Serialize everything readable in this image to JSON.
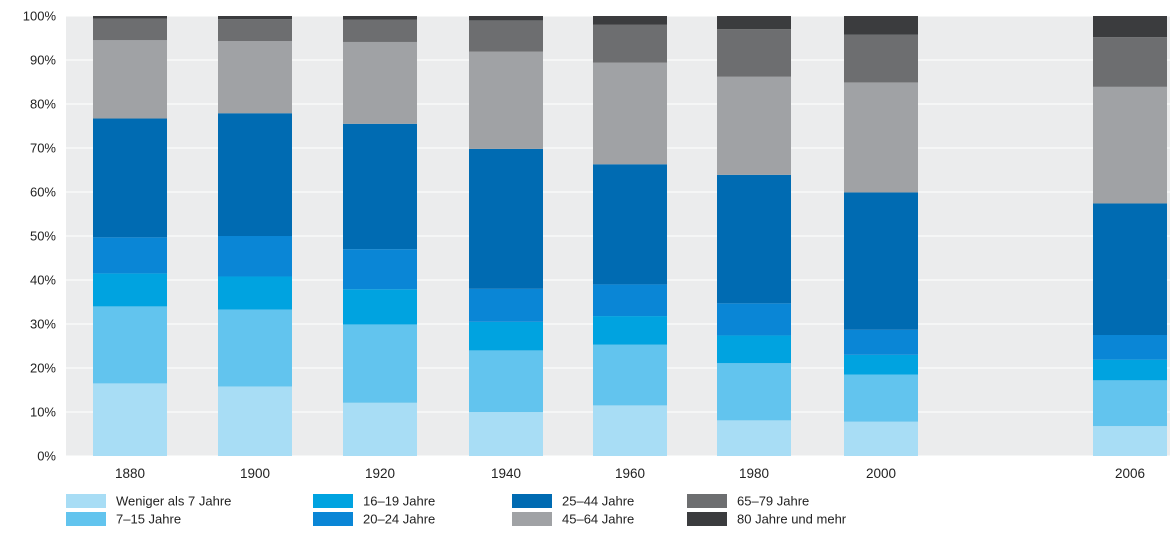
{
  "chart_data": {
    "type": "bar",
    "stacked": true,
    "normalized": true,
    "title": "",
    "xlabel": "",
    "ylabel": "",
    "categories": [
      "1880",
      "1900",
      "1920",
      "1940",
      "1960",
      "1980",
      "2000",
      "2006"
    ],
    "x": [
      1880,
      1900,
      1920,
      1940,
      1960,
      1980,
      2000,
      2006
    ],
    "ylim": [
      0,
      100
    ],
    "yticks": [
      0,
      10,
      20,
      30,
      40,
      50,
      60,
      70,
      80,
      90,
      100
    ],
    "ytick_labels": [
      "0%",
      "10%",
      "20%",
      "30%",
      "40%",
      "50%",
      "60%",
      "70%",
      "80%",
      "90%",
      "100%"
    ],
    "grid": true,
    "legend_position": "bottom",
    "series": [
      {
        "name": "Weniger als 7 Jahre",
        "color": "#a8ddf5",
        "values": [
          16.5,
          15.8,
          12.1,
          10.0,
          11.5,
          8.1,
          7.8,
          6.8
        ]
      },
      {
        "name": "7–15 Jahre",
        "color": "#62c4ee",
        "values": [
          17.5,
          17.5,
          17.8,
          14.0,
          13.8,
          13.0,
          10.7,
          10.4
        ]
      },
      {
        "name": "16–19 Jahre",
        "color": "#00a3e0",
        "values": [
          7.5,
          7.5,
          8.0,
          6.5,
          6.5,
          6.3,
          4.5,
          4.7
        ]
      },
      {
        "name": "20–24 Jahre",
        "color": "#0a86d6",
        "values": [
          8.2,
          9.2,
          9.1,
          7.5,
          7.2,
          7.3,
          5.7,
          5.6
        ]
      },
      {
        "name": "25–44 Jahre",
        "color": "#006bb2",
        "values": [
          27.0,
          27.9,
          28.5,
          31.8,
          27.3,
          29.2,
          31.2,
          29.9
        ]
      },
      {
        "name": "45–64 Jahre",
        "color": "#a0a2a5",
        "values": [
          17.8,
          16.4,
          18.6,
          22.1,
          23.1,
          22.3,
          25.0,
          26.5
        ]
      },
      {
        "name": "65–79 Jahre",
        "color": "#6d6e70",
        "values": [
          4.9,
          5.0,
          5.1,
          7.1,
          8.6,
          10.8,
          10.9,
          11.3
        ]
      },
      {
        "name": "80 Jahre und mehr",
        "color": "#3b3c3e",
        "values": [
          0.6,
          0.7,
          0.8,
          1.0,
          2.0,
          3.0,
          4.2,
          4.8
        ]
      }
    ],
    "background_color": "#ebeced",
    "gridline_color": "#ffffff"
  }
}
